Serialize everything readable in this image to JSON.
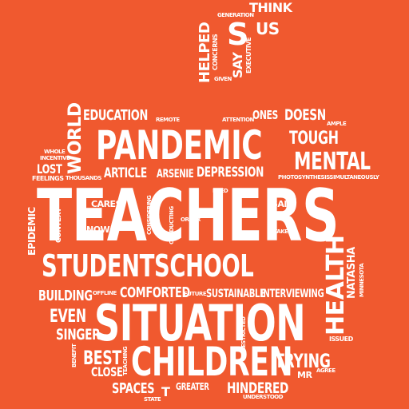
{
  "colors": {
    "background": "#f0592f",
    "text": "#ffffff"
  },
  "words": {
    "teachers": "TEACHERS",
    "situation": "SITUATION",
    "pandemic": "PANDEMIC",
    "studentschool": "STUDENTSCHOOL",
    "children": "CHILDREN",
    "mental": "MENTAL",
    "health": "HEALTH",
    "education": "EDUCATION",
    "depression": "DEPRESSION",
    "article": "ARTICLE",
    "arsenie": "ARSENIE",
    "tough": "TOUGH",
    "doesn": "DOESN",
    "ones": "ONES",
    "world": "WORLD",
    "lost": "LOST",
    "feelings": "FEELINGS",
    "thousands": "THOUSANDS",
    "whole": "WHOLE",
    "incentive": "INCENTIVE",
    "remote": "REMOTE",
    "attention": "ATTENTION",
    "ample": "AMPLE",
    "photosynthesis": "PHOTOSYNTHESISSIMULTANEOUSLY",
    "cares": "CARES",
    "now": "NOW",
    "need": "NEED",
    "said": "SAID",
    "stake": "STAKE",
    "order": "ORDER",
    "considering": "CONSIDERING",
    "conducting": "CONDUCTING",
    "context": "CONTEXT",
    "epidemic": "EPIDEMIC",
    "natasha": "NATASHA",
    "minnesota": "MINNESOTA",
    "building": "BUILDING",
    "offline": "OFFLINE",
    "comforted": "COMFORTED",
    "future": "FUTURE",
    "sustainable": "SUSTAINABLE",
    "interviewing": "INTERVIEWING",
    "even": "EVEN",
    "singer": "SINGER",
    "best": "BEST",
    "close": "CLOSE",
    "benefit": "BENEFIT",
    "teaching": "TEACHING",
    "restricted": "RESTRICTED",
    "issued": "ISSUED",
    "trying": "TRYING",
    "mr": "MR",
    "agree": "AGREE",
    "spaces": "SPACES",
    "t": "T",
    "state": "STATE",
    "greater": "GREATER",
    "hindered": "HINDERED",
    "understood": "UNDERSTOOD",
    "think": "THINK",
    "generation": "GENERATION",
    "s": "S",
    "us": "US",
    "helped": "HELPED",
    "concerns": "CONCERNS",
    "say": "SAY",
    "executive": "EXECUTIVE",
    "given": "GIVEN"
  }
}
